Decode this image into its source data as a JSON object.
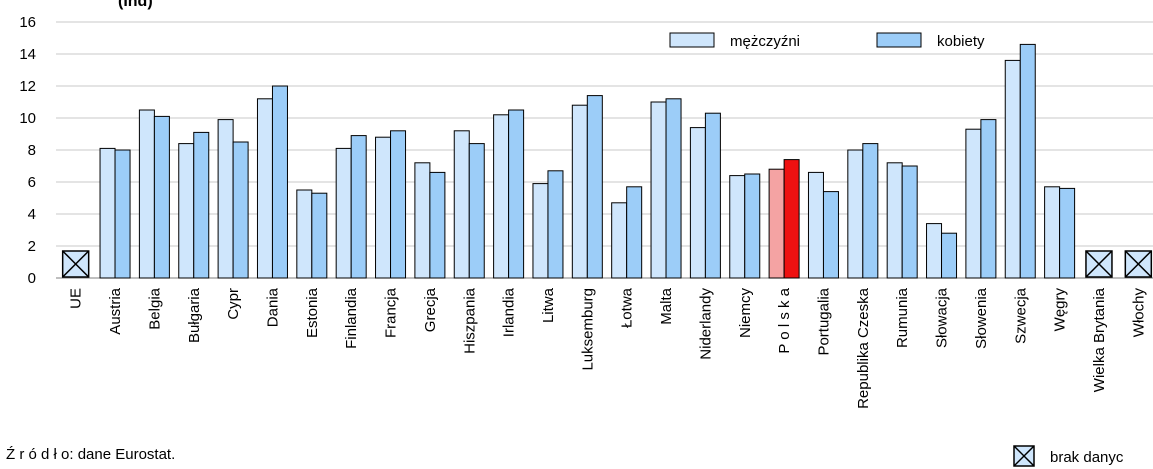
{
  "chart_data": {
    "type": "bar",
    "title_fragment": "(Ind)",
    "xlabel": "",
    "ylabel": "",
    "ylim": [
      0,
      16
    ],
    "yticks": [
      0,
      2,
      4,
      6,
      8,
      10,
      12,
      14,
      16
    ],
    "grid": true,
    "legend_position": "top-right",
    "categories": [
      "UE",
      "Austria",
      "Belgia",
      "Bułgaria",
      "Cypr",
      "Dania",
      "Estonia",
      "Finlandia",
      "Francja",
      "Grecja",
      "Hiszpania",
      "Irlandia",
      "Litwa",
      "Luksemburg",
      "Łotwa",
      "Malta",
      "Niderlandy",
      "Niemcy",
      "P o l s k a",
      "Portugalia",
      "Republika Czeska",
      "Rumunia",
      "Słowacja",
      "Słowenia",
      "Szwecja",
      "Węgry",
      "Wielka Brytania",
      "Włochy"
    ],
    "series": [
      {
        "name": "mężczyźni",
        "color": "#cfe6fc",
        "values": [
          null,
          8.1,
          10.5,
          8.4,
          9.9,
          11.2,
          5.5,
          8.1,
          8.8,
          7.2,
          9.2,
          10.2,
          5.9,
          10.8,
          4.7,
          11.0,
          9.4,
          6.4,
          6.8,
          6.6,
          8.0,
          7.2,
          3.4,
          9.3,
          13.6,
          5.7,
          null,
          null
        ]
      },
      {
        "name": "kobiety",
        "color": "#9ccdf8",
        "values": [
          null,
          8.0,
          10.1,
          9.1,
          8.5,
          12.0,
          5.3,
          8.9,
          9.2,
          6.6,
          8.4,
          10.5,
          6.7,
          11.4,
          5.7,
          11.2,
          10.3,
          6.5,
          7.4,
          5.4,
          8.4,
          7.0,
          2.8,
          9.9,
          14.6,
          5.6,
          null,
          null
        ]
      }
    ],
    "highlight": {
      "category": "P o l s k a",
      "colors": [
        "#f4a3a3",
        "#ee1111"
      ]
    },
    "no_data_categories": [
      "UE",
      "Wielka Brytania",
      "Włochy"
    ],
    "no_data_label": "brak danyc"
  },
  "source_text": "Ź r ó d ł o: dane Eurostat."
}
